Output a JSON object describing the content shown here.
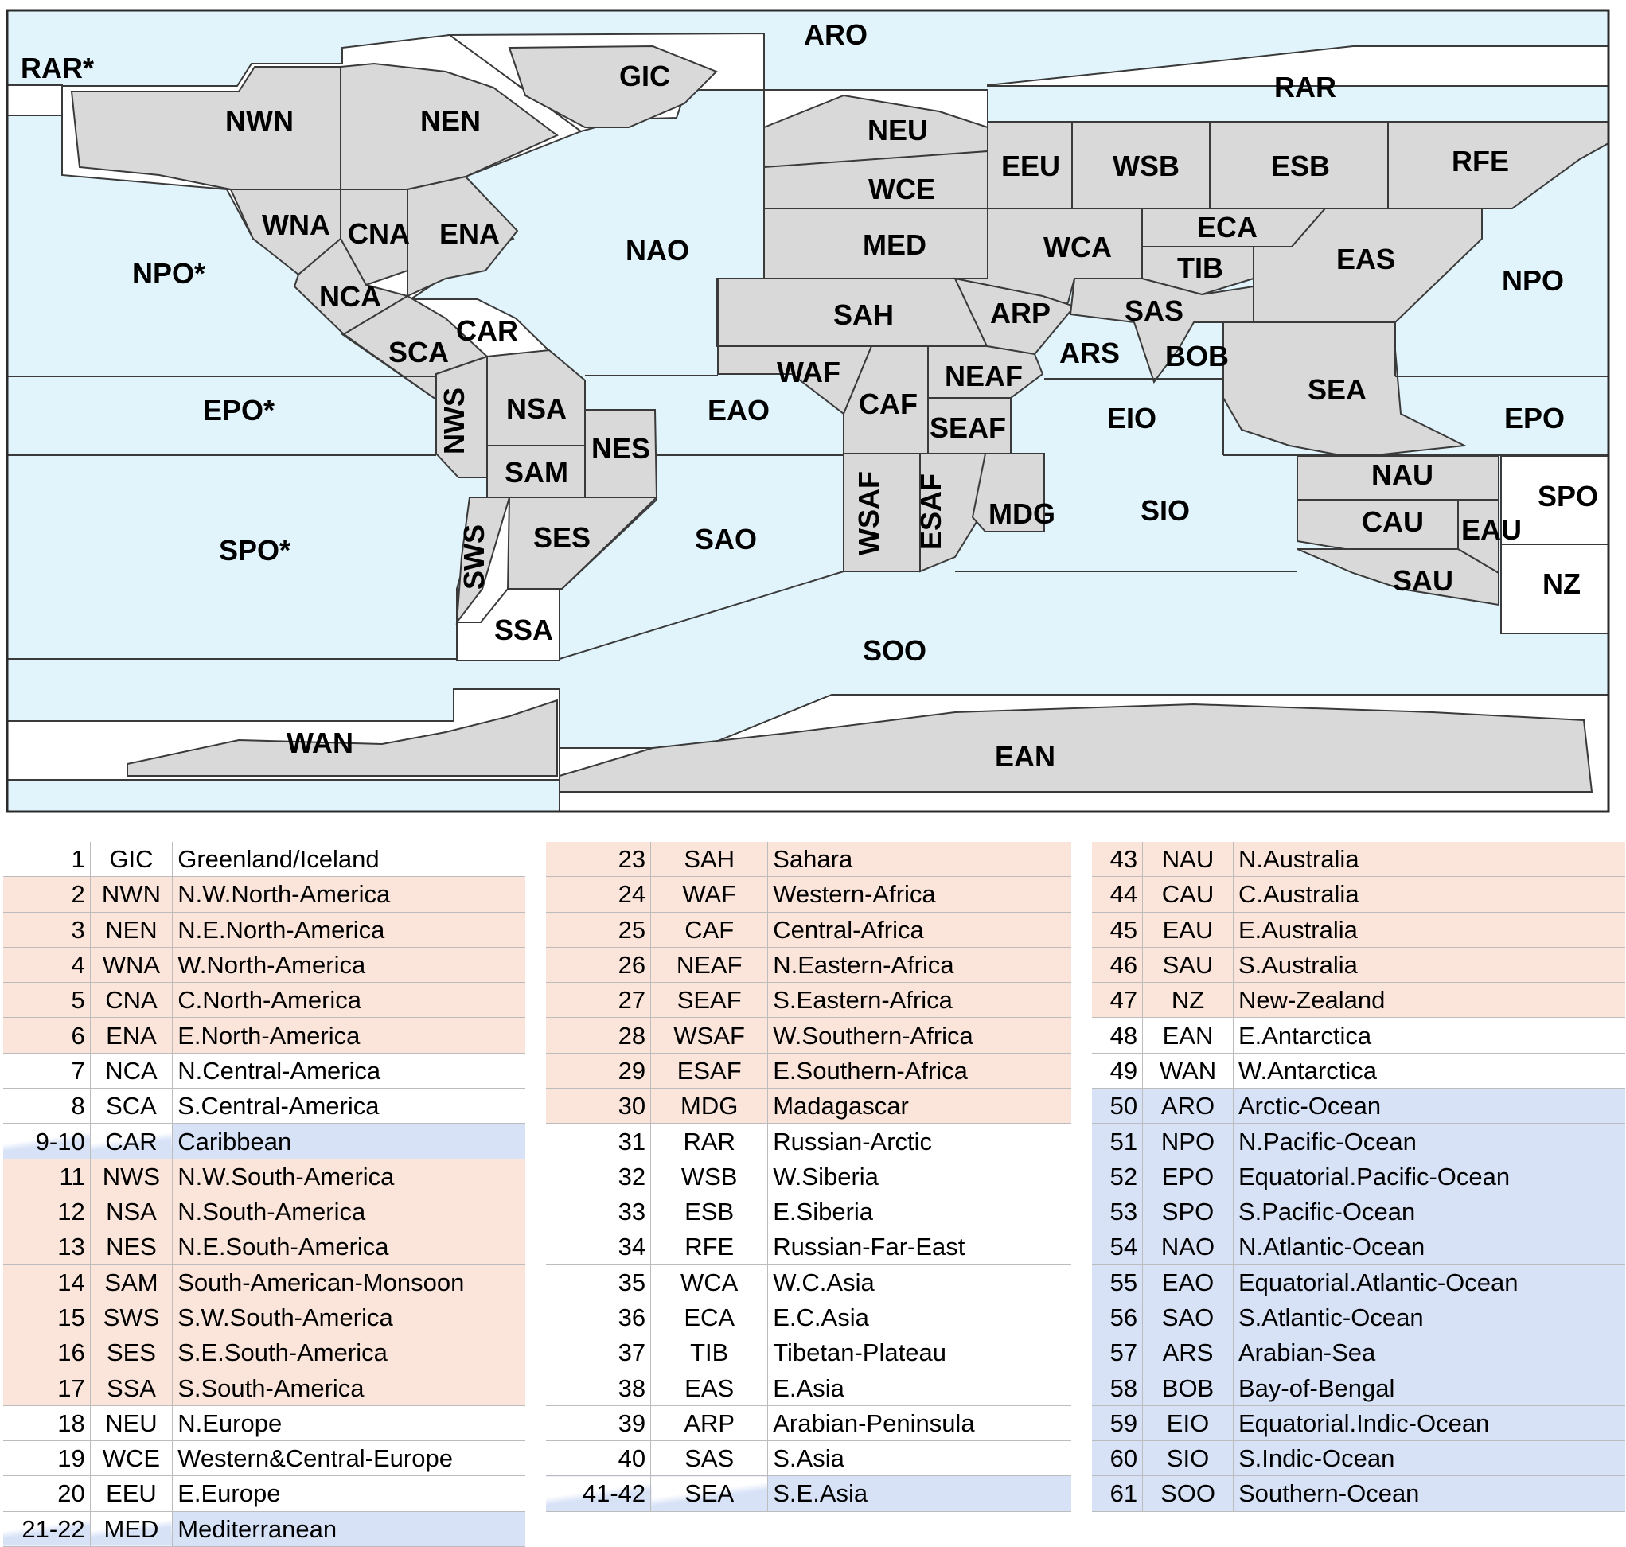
{
  "map": {
    "labels": [
      {
        "text": "ARO"
      },
      {
        "text": "RAR*"
      },
      {
        "text": "GIC"
      },
      {
        "text": "NWN"
      },
      {
        "text": "NEN"
      },
      {
        "text": "RAR"
      },
      {
        "text": "NEU"
      },
      {
        "text": "EEU"
      },
      {
        "text": "WSB"
      },
      {
        "text": "ESB"
      },
      {
        "text": "RFE"
      },
      {
        "text": "WCE"
      },
      {
        "text": "WNA"
      },
      {
        "text": "CNA"
      },
      {
        "text": "ENA"
      },
      {
        "text": "NAO"
      },
      {
        "text": "MED"
      },
      {
        "text": "WCA"
      },
      {
        "text": "ECA"
      },
      {
        "text": "TIB"
      },
      {
        "text": "EAS"
      },
      {
        "text": "NPO*"
      },
      {
        "text": "NPO"
      },
      {
        "text": "NCA"
      },
      {
        "text": "CAR"
      },
      {
        "text": "SCA"
      },
      {
        "text": "SAH"
      },
      {
        "text": "ARP"
      },
      {
        "text": "SAS"
      },
      {
        "text": "ARS"
      },
      {
        "text": "BOB"
      },
      {
        "text": "WAF"
      },
      {
        "text": "NEAF"
      },
      {
        "text": "CAF"
      },
      {
        "text": "SEAF"
      },
      {
        "text": "SEA"
      },
      {
        "text": "EPO*"
      },
      {
        "text": "NWS"
      },
      {
        "text": "NSA"
      },
      {
        "text": "EAO"
      },
      {
        "text": "EIO"
      },
      {
        "text": "EPO"
      },
      {
        "text": "NES"
      },
      {
        "text": "SAM"
      },
      {
        "text": "NAU"
      },
      {
        "text": "SPO"
      },
      {
        "text": "CAU"
      },
      {
        "text": "EAU"
      },
      {
        "text": "SPO*"
      },
      {
        "text": "SES"
      },
      {
        "text": "SWS"
      },
      {
        "text": "WSAF"
      },
      {
        "text": "ESAF"
      },
      {
        "text": "MDG"
      },
      {
        "text": "SIO"
      },
      {
        "text": "SAO"
      },
      {
        "text": "SAU"
      },
      {
        "text": "NZ"
      },
      {
        "text": "SSA"
      },
      {
        "text": "SOO"
      },
      {
        "text": "WAN"
      },
      {
        "text": "EAN"
      }
    ]
  },
  "tables": [
    {
      "rows": [
        {
          "num": "1",
          "abbr": "GIC",
          "name": "Greenland/Iceland",
          "kind": "plain"
        },
        {
          "num": "2",
          "abbr": "NWN",
          "name": "N.W.North-America",
          "kind": "land"
        },
        {
          "num": "3",
          "abbr": "NEN",
          "name": "N.E.North-America",
          "kind": "land"
        },
        {
          "num": "4",
          "abbr": "WNA",
          "name": "W.North-America",
          "kind": "land"
        },
        {
          "num": "5",
          "abbr": "CNA",
          "name": "C.North-America",
          "kind": "land"
        },
        {
          "num": "6",
          "abbr": "ENA",
          "name": "E.North-America",
          "kind": "land"
        },
        {
          "num": "7",
          "abbr": "NCA",
          "name": "N.Central-America",
          "kind": "plain"
        },
        {
          "num": "8",
          "abbr": "SCA",
          "name": "S.Central-America",
          "kind": "plain"
        },
        {
          "num": "9-10",
          "abbr": "CAR",
          "name": "Caribbean",
          "kind": "mixed"
        },
        {
          "num": "11",
          "abbr": "NWS",
          "name": "N.W.South-America",
          "kind": "land"
        },
        {
          "num": "12",
          "abbr": "NSA",
          "name": "N.South-America",
          "kind": "land"
        },
        {
          "num": "13",
          "abbr": "NES",
          "name": "N.E.South-America",
          "kind": "land"
        },
        {
          "num": "14",
          "abbr": "SAM",
          "name": "South-American-Monsoon",
          "kind": "land"
        },
        {
          "num": "15",
          "abbr": "SWS",
          "name": "S.W.South-America",
          "kind": "land"
        },
        {
          "num": "16",
          "abbr": "SES",
          "name": "S.E.South-America",
          "kind": "land"
        },
        {
          "num": "17",
          "abbr": "SSA",
          "name": "S.South-America",
          "kind": "land"
        },
        {
          "num": "18",
          "abbr": "NEU",
          "name": "N.Europe",
          "kind": "plain"
        },
        {
          "num": "19",
          "abbr": "WCE",
          "name": "Western&Central-Europe",
          "kind": "plain"
        },
        {
          "num": "20",
          "abbr": "EEU",
          "name": "E.Europe",
          "kind": "plain"
        },
        {
          "num": "21-22",
          "abbr": "MED",
          "name": "Mediterranean",
          "kind": "mixed"
        }
      ]
    },
    {
      "rows": [
        {
          "num": "23",
          "abbr": "SAH",
          "name": "Sahara",
          "kind": "land"
        },
        {
          "num": "24",
          "abbr": "WAF",
          "name": "Western-Africa",
          "kind": "land"
        },
        {
          "num": "25",
          "abbr": "CAF",
          "name": "Central-Africa",
          "kind": "land"
        },
        {
          "num": "26",
          "abbr": "NEAF",
          "name": "N.Eastern-Africa",
          "kind": "land"
        },
        {
          "num": "27",
          "abbr": "SEAF",
          "name": "S.Eastern-Africa",
          "kind": "land"
        },
        {
          "num": "28",
          "abbr": "WSAF",
          "name": "W.Southern-Africa",
          "kind": "land"
        },
        {
          "num": "29",
          "abbr": "ESAF",
          "name": "E.Southern-Africa",
          "kind": "land"
        },
        {
          "num": "30",
          "abbr": "MDG",
          "name": "Madagascar",
          "kind": "land"
        },
        {
          "num": "31",
          "abbr": "RAR",
          "name": "Russian-Arctic",
          "kind": "plain"
        },
        {
          "num": "32",
          "abbr": "WSB",
          "name": "W.Siberia",
          "kind": "plain"
        },
        {
          "num": "33",
          "abbr": "ESB",
          "name": "E.Siberia",
          "kind": "plain"
        },
        {
          "num": "34",
          "abbr": "RFE",
          "name": "Russian-Far-East",
          "kind": "plain"
        },
        {
          "num": "35",
          "abbr": "WCA",
          "name": "W.C.Asia",
          "kind": "plain"
        },
        {
          "num": "36",
          "abbr": "ECA",
          "name": "E.C.Asia",
          "kind": "plain"
        },
        {
          "num": "37",
          "abbr": "TIB",
          "name": "Tibetan-Plateau",
          "kind": "plain"
        },
        {
          "num": "38",
          "abbr": "EAS",
          "name": "E.Asia",
          "kind": "plain"
        },
        {
          "num": "39",
          "abbr": "ARP",
          "name": "Arabian-Peninsula",
          "kind": "plain"
        },
        {
          "num": "40",
          "abbr": "SAS",
          "name": "S.Asia",
          "kind": "plain"
        },
        {
          "num": "41-42",
          "abbr": "SEA",
          "name": "S.E.Asia",
          "kind": "mixed"
        }
      ]
    },
    {
      "rows": [
        {
          "num": "43",
          "abbr": "NAU",
          "name": "N.Australia",
          "kind": "land"
        },
        {
          "num": "44",
          "abbr": "CAU",
          "name": "C.Australia",
          "kind": "land"
        },
        {
          "num": "45",
          "abbr": "EAU",
          "name": "E.Australia",
          "kind": "land"
        },
        {
          "num": "46",
          "abbr": "SAU",
          "name": "S.Australia",
          "kind": "land"
        },
        {
          "num": "47",
          "abbr": "NZ",
          "name": "New-Zealand",
          "kind": "land"
        },
        {
          "num": "48",
          "abbr": "EAN",
          "name": "E.Antarctica",
          "kind": "plain"
        },
        {
          "num": "49",
          "abbr": "WAN",
          "name": "W.Antarctica",
          "kind": "plain"
        },
        {
          "num": "50",
          "abbr": "ARO",
          "name": "Arctic-Ocean",
          "kind": "ocean"
        },
        {
          "num": "51",
          "abbr": "NPO",
          "name": "N.Pacific-Ocean",
          "kind": "ocean"
        },
        {
          "num": "52",
          "abbr": "EPO",
          "name": "Equatorial.Pacific-Ocean",
          "kind": "ocean"
        },
        {
          "num": "53",
          "abbr": "SPO",
          "name": "S.Pacific-Ocean",
          "kind": "ocean"
        },
        {
          "num": "54",
          "abbr": "NAO",
          "name": "N.Atlantic-Ocean",
          "kind": "ocean"
        },
        {
          "num": "55",
          "abbr": "EAO",
          "name": "Equatorial.Atlantic-Ocean",
          "kind": "ocean"
        },
        {
          "num": "56",
          "abbr": "SAO",
          "name": "S.Atlantic-Ocean",
          "kind": "ocean"
        },
        {
          "num": "57",
          "abbr": "ARS",
          "name": "Arabian-Sea",
          "kind": "ocean"
        },
        {
          "num": "58",
          "abbr": "BOB",
          "name": "Bay-of-Bengal",
          "kind": "ocean"
        },
        {
          "num": "59",
          "abbr": "EIO",
          "name": "Equatorial.Indic-Ocean",
          "kind": "ocean"
        },
        {
          "num": "60",
          "abbr": "SIO",
          "name": "S.Indic-Ocean",
          "kind": "ocean"
        },
        {
          "num": "61",
          "abbr": "SOO",
          "name": "Southern-Ocean",
          "kind": "ocean"
        }
      ]
    }
  ],
  "colors": {
    "ocean": "#e1f4fc",
    "land": "#d9d9d9",
    "region_fill": "#ffffff",
    "land_row": "#fbe5da",
    "ocean_row": "#d7e2f7"
  }
}
